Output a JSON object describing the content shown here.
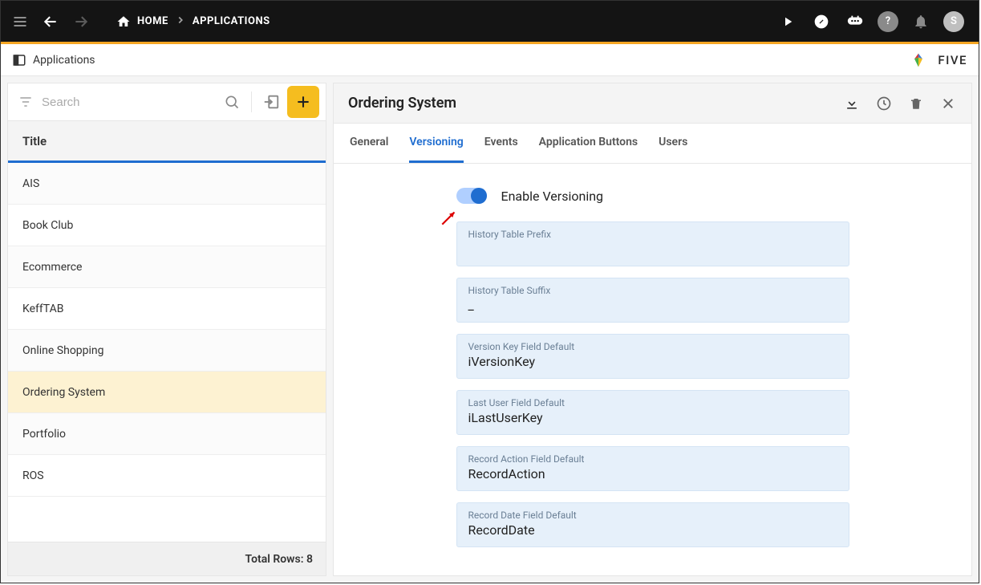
{
  "topbar": {
    "breadcrumb": {
      "home": "HOME",
      "current": "APPLICATIONS"
    },
    "avatar_initial": "S"
  },
  "subheader": {
    "title": "Applications"
  },
  "brand": {
    "name": "FIVE"
  },
  "sidebar": {
    "search_placeholder": "Search",
    "column_header": "Title",
    "rows": [
      {
        "title": "AIS"
      },
      {
        "title": "Book Club"
      },
      {
        "title": "Ecommerce"
      },
      {
        "title": "KeffTAB"
      },
      {
        "title": "Online Shopping"
      },
      {
        "title": "Ordering System",
        "selected": true
      },
      {
        "title": "Portfolio"
      },
      {
        "title": "ROS"
      }
    ],
    "footer": "Total Rows: 8"
  },
  "detail": {
    "title": "Ordering System",
    "tabs": [
      {
        "label": "General"
      },
      {
        "label": "Versioning",
        "active": true
      },
      {
        "label": "Events"
      },
      {
        "label": "Application Buttons"
      },
      {
        "label": "Users"
      }
    ],
    "toggle": {
      "label": "Enable Versioning",
      "on": true
    },
    "fields": [
      {
        "label": "History Table Prefix",
        "value": ""
      },
      {
        "label": "History Table Suffix",
        "value": "_"
      },
      {
        "label": "Version Key Field Default",
        "value": "iVersionKey"
      },
      {
        "label": "Last User Field Default",
        "value": "iLastUserKey"
      },
      {
        "label": "Record Action Field Default",
        "value": "RecordAction"
      },
      {
        "label": "Record Date Field Default",
        "value": "RecordDate"
      }
    ]
  }
}
